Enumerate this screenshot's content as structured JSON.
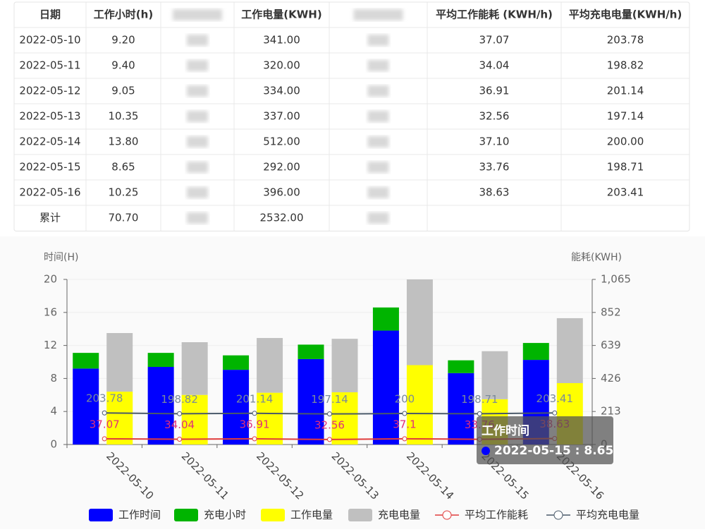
{
  "table": {
    "headers": [
      "日期",
      "工作小时(h)",
      "工作电量(KWH)",
      "平均工作能耗 (KWH/h)",
      "平均充电电量(KWH/h)"
    ],
    "rows": [
      [
        "2022-05-10",
        "9.20",
        "341.00",
        "37.07",
        "203.78"
      ],
      [
        "2022-05-11",
        "9.40",
        "320.00",
        "34.04",
        "198.82"
      ],
      [
        "2022-05-12",
        "9.05",
        "334.00",
        "36.91",
        "201.14"
      ],
      [
        "2022-05-13",
        "10.35",
        "337.00",
        "32.56",
        "197.14"
      ],
      [
        "2022-05-14",
        "13.80",
        "512.00",
        "37.10",
        "200.00"
      ],
      [
        "2022-05-15",
        "8.65",
        "292.00",
        "33.76",
        "198.71"
      ],
      [
        "2022-05-16",
        "10.25",
        "396.00",
        "38.63",
        "203.41"
      ]
    ],
    "total": [
      "累计",
      "70.70",
      "2532.00"
    ]
  },
  "chart_data": {
    "type": "bar",
    "y_label": "时间(H)",
    "y2_label": "能耗(KWH)",
    "categories": [
      "2022-05-10",
      "2022-05-11",
      "2022-05-12",
      "2022-05-13",
      "2022-05-14",
      "2022-05-15",
      "2022-05-16"
    ],
    "series": [
      {
        "name": "工作时间",
        "type": "bar",
        "axis": "y",
        "color": "#0000ff",
        "values": [
          9.2,
          9.4,
          9.05,
          10.35,
          13.8,
          8.65,
          10.25
        ]
      },
      {
        "name": "充电小时",
        "type": "bar",
        "axis": "y",
        "color": "#00b400",
        "values": [
          1.9,
          1.7,
          1.75,
          1.75,
          2.8,
          1.55,
          2.05
        ]
      },
      {
        "name": "工作电量",
        "type": "bar",
        "axis": "y2",
        "color": "#ffff00",
        "values": [
          341,
          320,
          334,
          337,
          512,
          292,
          396
        ]
      },
      {
        "name": "充电电量",
        "type": "bar",
        "axis": "y2",
        "color": "#c0c0c0",
        "values": [
          378,
          340,
          353,
          345,
          553,
          310,
          419
        ]
      },
      {
        "name": "平均工作能耗",
        "type": "line",
        "axis": "y2",
        "color": "#e03c3c",
        "label_color": "#e0307a",
        "values": [
          37.07,
          34.04,
          36.91,
          32.56,
          37.1,
          33.76,
          38.63
        ]
      },
      {
        "name": "平均充电电量",
        "type": "line",
        "axis": "y2",
        "color": "#4a5a6a",
        "label_color": "#7a8a9a",
        "values": [
          203.78,
          198.82,
          201.14,
          197.14,
          200,
          198.71,
          203.41
        ]
      }
    ],
    "ylim": [
      0,
      20
    ],
    "yticks": [
      0,
      4,
      8,
      12,
      16,
      20
    ],
    "y2lim": [
      0,
      1065
    ],
    "y2ticks": [
      0,
      213,
      426,
      639,
      852,
      {
        "value": 1065,
        "label": "1,065"
      }
    ],
    "grid": true,
    "tooltip": {
      "title": "工作时间",
      "text": "2022-05-15 : 8.65"
    }
  }
}
